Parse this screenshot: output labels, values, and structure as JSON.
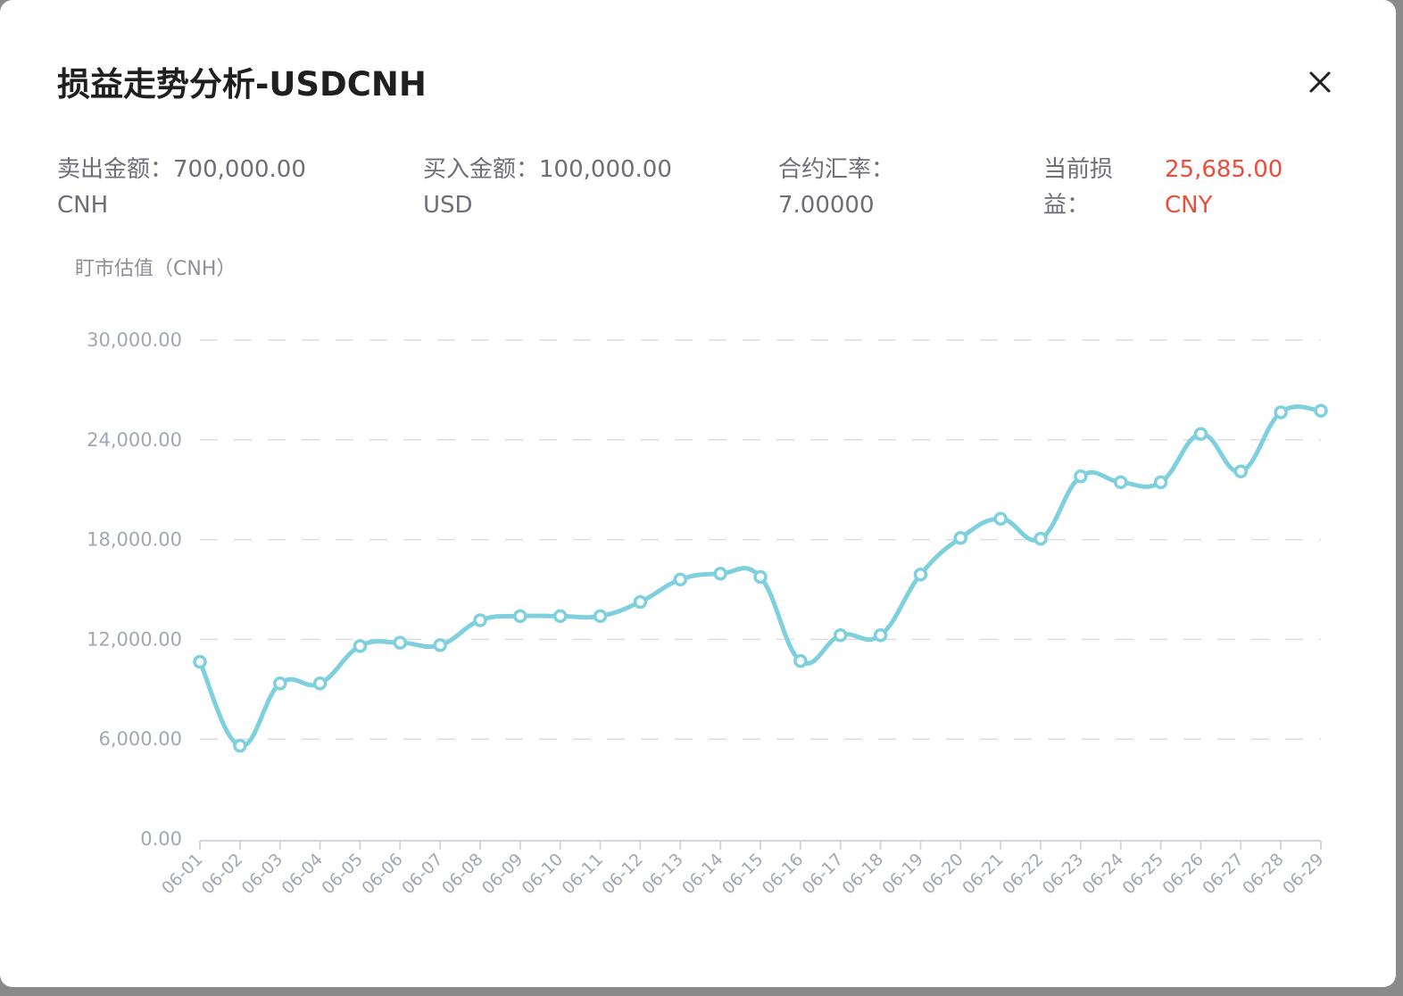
{
  "modal": {
    "title": "损益走势分析-USDCNH",
    "close_icon": "close-icon"
  },
  "summary": {
    "sell_label": "卖出金额：",
    "sell_value": "700,000.00",
    "sell_unit": "CNH",
    "buy_label": "买入金额：",
    "buy_value": "100,000.00",
    "buy_unit": "USD",
    "rate_label": "合约汇率：",
    "rate_value": "7.00000",
    "pnl_label_line1": "当前损",
    "pnl_label_line2": "益：",
    "pnl_value": "25,685.00",
    "pnl_unit": "CNY",
    "pnl_color": "#ea4e3d"
  },
  "chart_data": {
    "type": "line",
    "ylabel": "盯市估值（CNH）",
    "ylim": [
      0,
      30000
    ],
    "yticks": [
      "0.00",
      "6,000.00",
      "12,000.00",
      "18,000.00",
      "24,000.00",
      "30,000.00"
    ],
    "grid": true,
    "line_color": "#7dd0dc",
    "x": [
      "06-01",
      "06-02",
      "06-03",
      "06-04",
      "06-05",
      "06-06",
      "06-07",
      "06-08",
      "06-09",
      "06-10",
      "06-11",
      "06-12",
      "06-13",
      "06-14",
      "06-15",
      "06-16",
      "06-17",
      "06-18",
      "06-19",
      "06-20",
      "06-21",
      "06-22",
      "06-23",
      "06-24",
      "06-25",
      "06-26",
      "06-27",
      "06-28",
      "06-29"
    ],
    "values": [
      10650,
      5600,
      9350,
      9350,
      11600,
      11800,
      11650,
      13150,
      13400,
      13400,
      13400,
      14250,
      15600,
      15950,
      15750,
      10700,
      12250,
      12250,
      15900,
      18100,
      19250,
      18050,
      21800,
      21450,
      21450,
      24350,
      22100,
      25650,
      25750
    ]
  }
}
